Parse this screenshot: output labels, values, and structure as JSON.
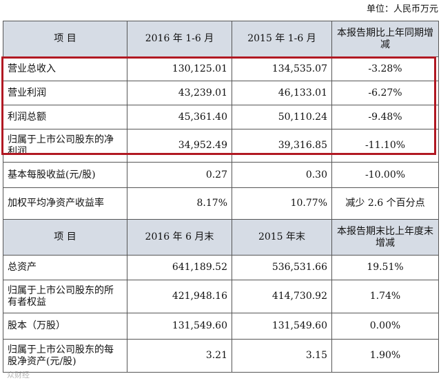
{
  "unit_label": "单位：人民币万元",
  "section1": {
    "header": [
      "项  目",
      "2016 年 1-6 月",
      "2015 年 1-6 月",
      "本报告期比上年同期增减"
    ],
    "rows": [
      [
        "营业总收入",
        "130,125.01",
        "134,535.07",
        "-3.28%"
      ],
      [
        "营业利润",
        "43,239.01",
        "46,133.01",
        "-6.27%"
      ],
      [
        "利润总额",
        "45,361.40",
        "50,110.24",
        "-9.48%"
      ],
      [
        "归属于上市公司股东的净利润",
        "34,952.49",
        "39,316.85",
        "-11.10%"
      ],
      [
        "基本每股收益(元/股)",
        "0.27",
        "0.30",
        "-10.00%"
      ],
      [
        "加权平均净资产收益率",
        "8.17%",
        "10.77%",
        "减少 2.6 个百分点"
      ]
    ]
  },
  "section2": {
    "header": [
      "项  目",
      "2016 年 6 月末",
      "2015 年末",
      "本报告期末比上年度末增减"
    ],
    "rows": [
      [
        "总资产",
        "641,189.52",
        "536,531.66",
        "19.51%"
      ],
      [
        "归属于上市公司股东的所有者权益",
        "421,948.16",
        "414,730.92",
        "1.74%"
      ],
      [
        "股本（万股）",
        "131,549.60",
        "131,549.60",
        "0.00%"
      ],
      [
        "归属于上市公司股东的每股净资产(元/股)",
        "3.21",
        "3.15",
        "1.90%"
      ]
    ]
  },
  "highlight_color": "#b11822",
  "header_fill": "#d6dce5",
  "watermark": "众财经"
}
